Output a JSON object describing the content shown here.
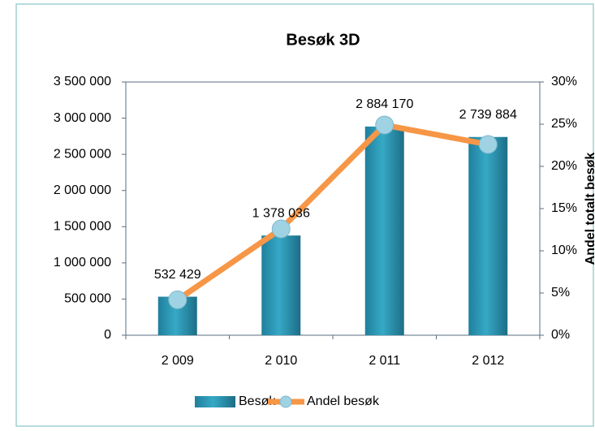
{
  "chart_data": {
    "type": "bar",
    "title": "Besøk 3D",
    "categories": [
      "2 009",
      "2 010",
      "2 011",
      "2 012"
    ],
    "series": [
      {
        "name": "Besøk",
        "type": "bar",
        "color": "#2596b3",
        "values": [
          532429,
          1378036,
          2884170,
          2739884
        ],
        "value_labels": [
          "532 429",
          "1 378 036",
          "2 884 170",
          "2 739 884"
        ]
      },
      {
        "name": "Andel besøk",
        "type": "line",
        "axis": "y2",
        "color": "#f79646",
        "values": [
          4.2,
          12.6,
          24.9,
          22.6
        ]
      }
    ],
    "ylim": [
      0,
      3500000
    ],
    "yticks": [
      0,
      {
        "value": 500000,
        "label": "500 000"
      },
      {
        "value": 1000000,
        "label": "1 000 000"
      },
      {
        "value": 1500000,
        "label": "1 500 000"
      },
      {
        "value": 2000000,
        "label": "2 000 000"
      },
      {
        "value": 2500000,
        "label": "2 500 000"
      },
      {
        "value": 3000000,
        "label": "3 000 000"
      },
      {
        "value": 3500000,
        "label": "3 500 000"
      }
    ],
    "y2lim": [
      0,
      30
    ],
    "y2ticks": [
      {
        "value": 0,
        "label": "0%"
      },
      {
        "value": 5,
        "label": "5%"
      },
      {
        "value": 10,
        "label": "10%"
      },
      {
        "value": 15,
        "label": "15%"
      },
      {
        "value": 20,
        "label": "20%"
      },
      {
        "value": 25,
        "label": "25%"
      },
      {
        "value": 30,
        "label": "30%"
      }
    ],
    "y2label": "Andel totalt besøk",
    "legend": "bottom"
  }
}
